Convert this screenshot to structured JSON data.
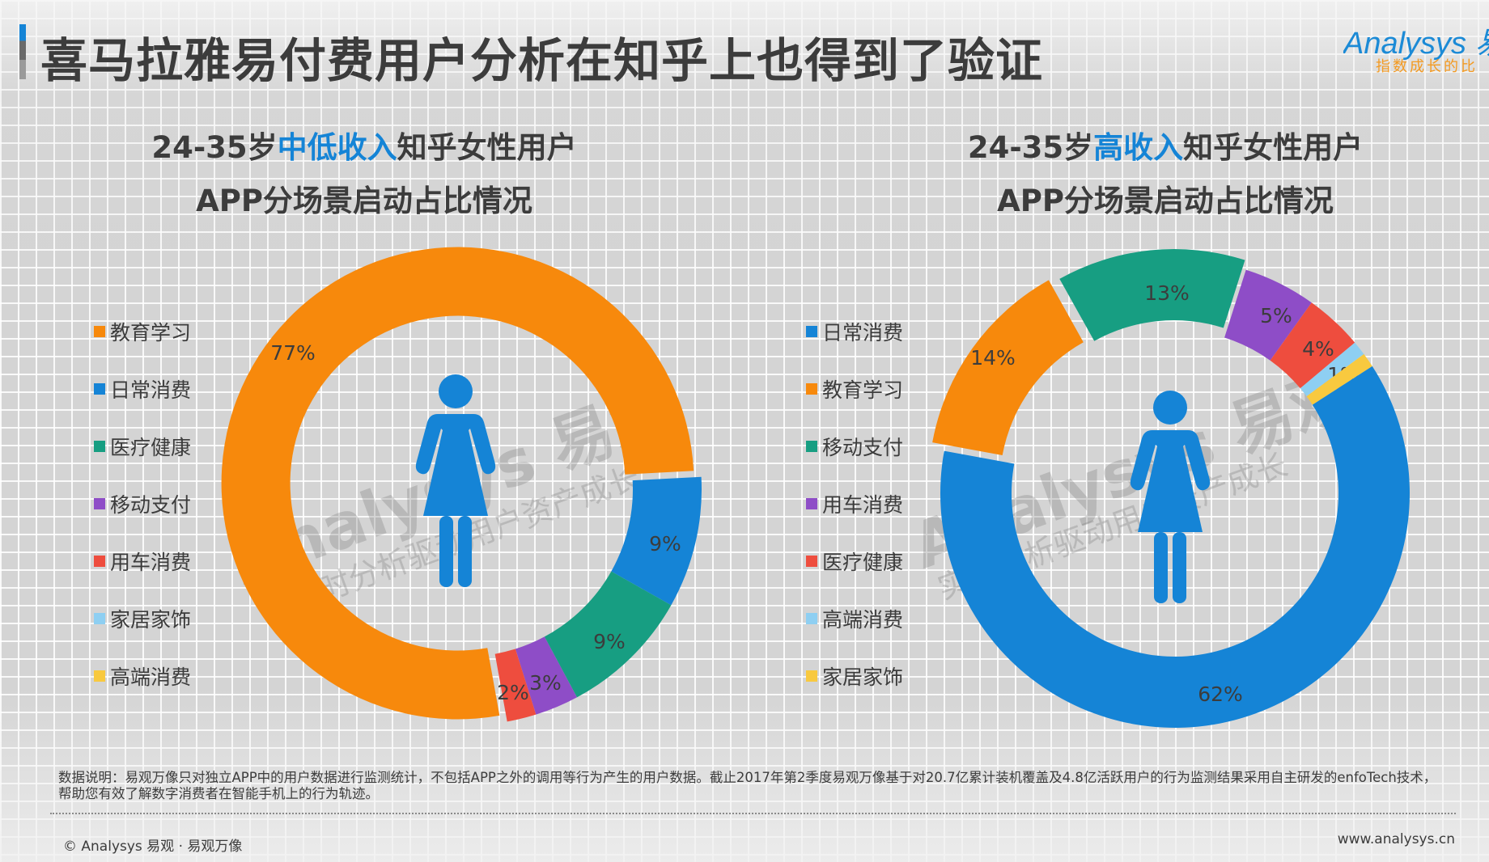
{
  "header": {
    "title": "喜马拉雅易付费用户分析在知乎上也得到了验证",
    "logo_text": "Analysys 易",
    "logo_tagline": "指数成长的比"
  },
  "watermarks": {
    "brand": "Analysys 易观",
    "tagline": "实时分析驱动用户资产成长"
  },
  "left_chart": {
    "title_line1_prefix": "24-35岁",
    "title_line1_highlight": "中低收入",
    "title_line1_suffix": "知乎女性用户",
    "title_line2": "APP分场景启动占比情况",
    "icon": "female-person-icon"
  },
  "right_chart": {
    "title_line1_prefix": "24-35岁",
    "title_line1_highlight": "高收入",
    "title_line1_suffix": "知乎女性用户",
    "title_line2": "APP分场景启动占比情况",
    "icon": "female-person-icon"
  },
  "colors": {
    "accent": "#1584d6",
    "education": "#f7890c",
    "daily": "#1584d6",
    "medical": "#179e82",
    "payment": "#8e4dc7",
    "car": "#ee4d3e",
    "home": "#8ecff2",
    "luxury": "#f8c93f"
  },
  "chart_data": [
    {
      "type": "pie",
      "variant": "donut",
      "title": "24-35岁中低收入知乎女性用户 APP分场景启动占比情况",
      "legend_position": "left",
      "categories": [
        "教育学习",
        "日常消费",
        "医疗健康",
        "移动支付",
        "用车消费",
        "家居家饰",
        "高端消费"
      ],
      "values": [
        77,
        9,
        9,
        3,
        2,
        0,
        0
      ],
      "labels": [
        "77%",
        "9%",
        "9%",
        "3%",
        "2%",
        "",
        ""
      ],
      "colors": [
        "#f7890c",
        "#1584d6",
        "#179e82",
        "#8e4dc7",
        "#ee4d3e",
        "#8ecff2",
        "#f8c93f"
      ]
    },
    {
      "type": "pie",
      "variant": "donut",
      "title": "24-35岁高收入知乎女性用户 APP分场景启动占比情况",
      "legend_position": "left",
      "categories": [
        "日常消费",
        "教育学习",
        "移动支付",
        "用车消费",
        "医疗健康",
        "高端消费",
        "家居家饰"
      ],
      "values": [
        62,
        14,
        13,
        5,
        4,
        1,
        1
      ],
      "labels": [
        "62%",
        "14%",
        "13%",
        "5%",
        "4%",
        "1%",
        "1%"
      ],
      "colors": [
        "#1584d6",
        "#f7890c",
        "#179e82",
        "#8e4dc7",
        "#ee4d3e",
        "#8ecff2",
        "#f8c93f"
      ]
    }
  ],
  "footer": {
    "note": "数据说明：易观万像只对独立APP中的用户数据进行监测统计，不包括APP之外的调用等行为产生的用户数据。截止2017年第2季度易观万像基于对20.7亿累计装机覆盖及4.8亿活跃用户的行为监测结果采用自主研发的enfoTech技术，帮助您有效了解数字消费者在智能手机上的行为轨迹。",
    "copyright": "© Analysys 易观 · 易观万像",
    "website": "www.analysys.cn"
  }
}
